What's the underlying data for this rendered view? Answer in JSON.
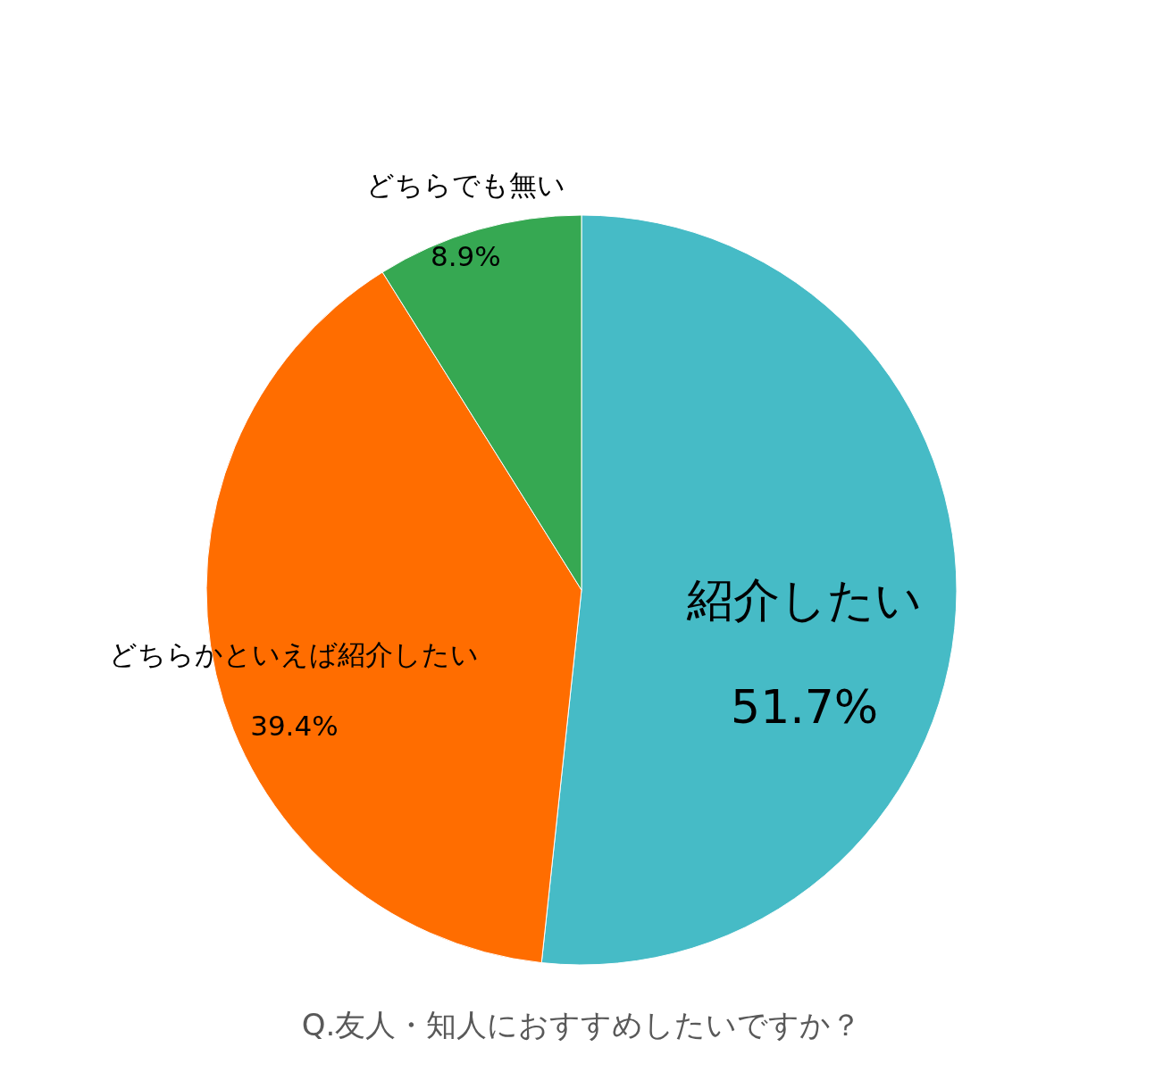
{
  "chart_data": {
    "type": "pie",
    "title": "Q.友人・知人におすすめしたいですか？",
    "categories": [
      "紹介したい",
      "どちらかといえば紹介したい",
      "どちらでも無い"
    ],
    "values": [
      51.7,
      39.4,
      8.9
    ],
    "value_labels": [
      "51.7%",
      "39.4%",
      "8.9%"
    ],
    "colors": [
      "#46bbc6",
      "#ff6d00",
      "#36a852"
    ]
  }
}
